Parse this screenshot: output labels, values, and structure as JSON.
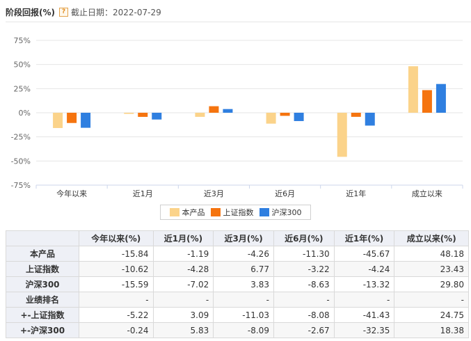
{
  "header": {
    "title": "阶段回报(%)",
    "help_icon": "question-mark-icon",
    "deadline": "截止日期：2022-07-29"
  },
  "chart_data": {
    "type": "bar",
    "categories": [
      "今年以来",
      "近1月",
      "近3月",
      "近6月",
      "近1年",
      "成立以来"
    ],
    "series": [
      {
        "name": "本产品",
        "color": "#fbd38a",
        "values": [
          -15.84,
          -1.19,
          -4.26,
          -11.3,
          -45.67,
          48.18
        ]
      },
      {
        "name": "上证指数",
        "color": "#f5740f",
        "values": [
          -10.62,
          -4.28,
          6.77,
          -3.22,
          -4.24,
          23.43
        ]
      },
      {
        "name": "沪深300",
        "color": "#2f7fe0",
        "values": [
          -15.59,
          -7.02,
          3.83,
          -8.63,
          -13.32,
          29.8
        ]
      }
    ],
    "ylim": [
      -75,
      75
    ],
    "yticks": [
      "75%",
      "50%",
      "25%",
      "0%",
      "-25%",
      "-50%",
      "-75%"
    ],
    "ytick_values": [
      75,
      50,
      25,
      0,
      -25,
      -50,
      -75
    ],
    "legend_position": "bottom-center",
    "grid": true
  },
  "table": {
    "columns": [
      "",
      "今年以来(%)",
      "近1月(%)",
      "近3月(%)",
      "近6月(%)",
      "近1年(%)",
      "成立以来(%)"
    ],
    "rows": [
      {
        "label": "本产品",
        "values": [
          "-15.84",
          "-1.19",
          "-4.26",
          "-11.30",
          "-45.67",
          "48.18"
        ]
      },
      {
        "label": "上证指数",
        "values": [
          "-10.62",
          "-4.28",
          "6.77",
          "-3.22",
          "-4.24",
          "23.43"
        ]
      },
      {
        "label": "沪深300",
        "values": [
          "-15.59",
          "-7.02",
          "3.83",
          "-8.63",
          "-13.32",
          "29.80"
        ]
      },
      {
        "label": "业绩排名",
        "values": [
          "-",
          "-",
          "-",
          "-",
          "-",
          "-"
        ]
      },
      {
        "label": "+-上证指数",
        "values": [
          "-5.22",
          "3.09",
          "-11.03",
          "-8.08",
          "-41.43",
          "24.75"
        ]
      },
      {
        "label": "+-沪深300",
        "values": [
          "-0.24",
          "5.83",
          "-8.09",
          "-2.67",
          "-32.35",
          "18.38"
        ]
      }
    ]
  }
}
